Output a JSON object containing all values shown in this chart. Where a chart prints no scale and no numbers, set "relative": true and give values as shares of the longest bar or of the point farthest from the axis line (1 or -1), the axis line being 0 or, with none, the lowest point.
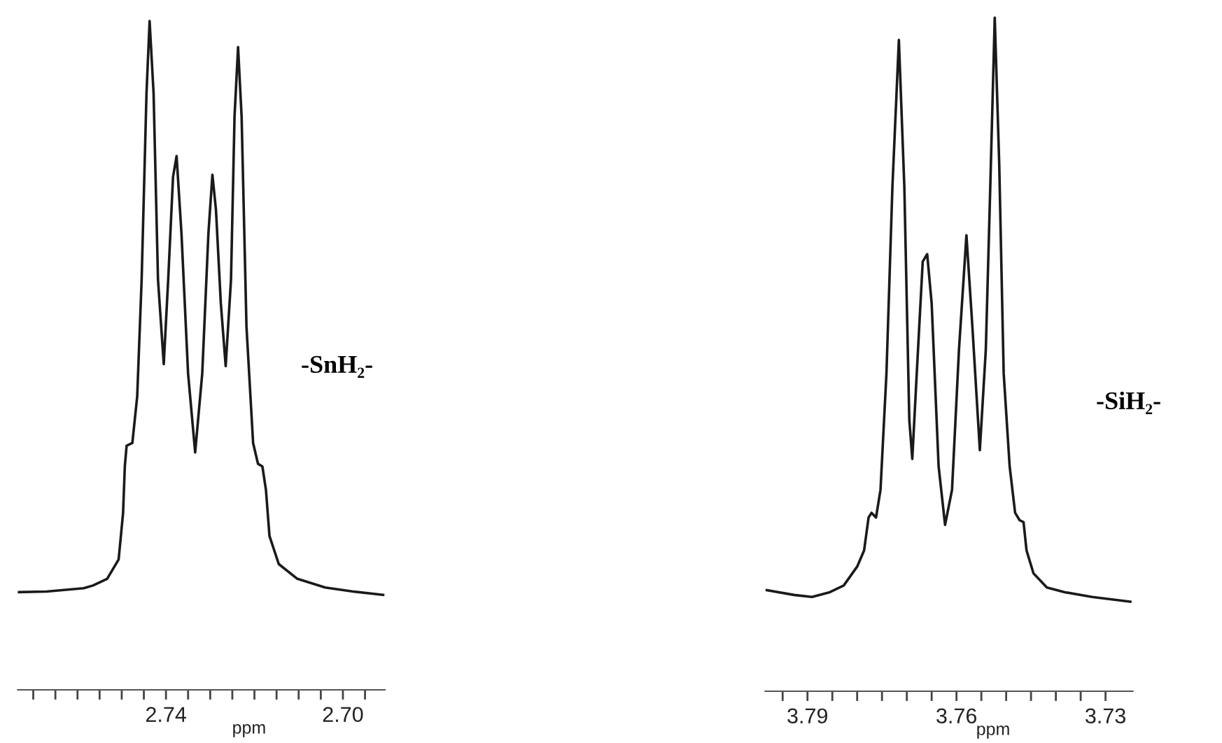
{
  "chart_data": [
    {
      "type": "line",
      "relative": true,
      "xlabel": "ppm",
      "annotations": [
        "-SnH₂-"
      ],
      "xlim": [
        2.7735,
        2.6905
      ],
      "xticks": [
        {
          "value": 2.77,
          "label": null
        },
        {
          "value": 2.765,
          "label": null
        },
        {
          "value": 2.76,
          "label": null
        },
        {
          "value": 2.755,
          "label": null
        },
        {
          "value": 2.75,
          "label": null
        },
        {
          "value": 2.745,
          "label": null
        },
        {
          "value": 2.74,
          "label": "2.74"
        },
        {
          "value": 2.735,
          "label": null
        },
        {
          "value": 2.73,
          "label": null
        },
        {
          "value": 2.725,
          "label": null
        },
        {
          "value": 2.72,
          "label": null
        },
        {
          "value": 2.715,
          "label": null
        },
        {
          "value": 2.71,
          "label": null
        },
        {
          "value": 2.705,
          "label": null
        },
        {
          "value": 2.7,
          "label": "2.70"
        },
        {
          "value": 2.695,
          "label": null
        }
      ],
      "tick_labels": "x",
      "marker": "none",
      "line_style": "solid",
      "series": [
        {
          "color": "#1a1a1a",
          "x": [
            2.7733,
            2.767,
            2.7586,
            2.7565,
            2.7533,
            2.7507,
            2.7497,
            2.7493,
            2.7489,
            2.7476,
            2.7465,
            2.7455,
            2.7444,
            2.7437,
            2.7428,
            2.7418,
            2.7405,
            2.7395,
            2.7384,
            2.7376,
            2.7365,
            2.735,
            2.7334,
            2.7318,
            2.7304,
            2.7295,
            2.7287,
            2.7276,
            2.7265,
            2.7253,
            2.7245,
            2.7237,
            2.7229,
            2.7218,
            2.7203,
            2.7192,
            2.7182,
            2.7174,
            2.7166,
            2.7145,
            2.7103,
            2.704,
            2.6977,
            2.6909
          ],
          "values": [
            0.146,
            0.147,
            0.152,
            0.156,
            0.166,
            0.195,
            0.264,
            0.334,
            0.365,
            0.369,
            0.439,
            0.613,
            0.892,
            1.0,
            0.892,
            0.613,
            0.487,
            0.613,
            0.767,
            0.798,
            0.683,
            0.473,
            0.355,
            0.473,
            0.683,
            0.77,
            0.718,
            0.578,
            0.484,
            0.613,
            0.857,
            0.961,
            0.857,
            0.543,
            0.369,
            0.338,
            0.334,
            0.299,
            0.23,
            0.188,
            0.166,
            0.153,
            0.147,
            0.142
          ]
        }
      ]
    },
    {
      "type": "line",
      "relative": true,
      "xlabel": "ppm",
      "annotations": [
        "-SiH₂-"
      ],
      "xlim": [
        3.7985,
        3.7245
      ],
      "xticks": [
        {
          "value": 3.795,
          "label": null
        },
        {
          "value": 3.79,
          "label": "3.79"
        },
        {
          "value": 3.785,
          "label": null
        },
        {
          "value": 3.78,
          "label": null
        },
        {
          "value": 3.775,
          "label": null
        },
        {
          "value": 3.77,
          "label": null
        },
        {
          "value": 3.765,
          "label": null
        },
        {
          "value": 3.76,
          "label": "3.76"
        },
        {
          "value": 3.755,
          "label": null
        },
        {
          "value": 3.75,
          "label": null
        },
        {
          "value": 3.745,
          "label": null
        },
        {
          "value": 3.74,
          "label": null
        },
        {
          "value": 3.735,
          "label": null
        },
        {
          "value": 3.73,
          "label": "3.73"
        }
      ],
      "tick_labels": "x",
      "marker": "none",
      "line_style": "solid",
      "series": [
        {
          "color": "#1a1a1a",
          "x": [
            3.7982,
            3.7927,
            3.7891,
            3.7855,
            3.7827,
            3.78,
            3.7786,
            3.7777,
            3.7771,
            3.7762,
            3.7753,
            3.7741,
            3.7729,
            3.7716,
            3.7705,
            3.7695,
            3.7689,
            3.768,
            3.7668,
            3.7659,
            3.765,
            3.7636,
            3.7623,
            3.7609,
            3.7595,
            3.758,
            3.7568,
            3.7553,
            3.7541,
            3.7532,
            3.7523,
            3.7514,
            3.7505,
            3.7493,
            3.7482,
            3.7473,
            3.7465,
            3.7459,
            3.7445,
            3.7418,
            3.7382,
            3.7327,
            3.725
          ],
          "values": [
            0.15,
            0.143,
            0.14,
            0.147,
            0.157,
            0.185,
            0.209,
            0.258,
            0.265,
            0.258,
            0.299,
            0.472,
            0.749,
            0.967,
            0.749,
            0.403,
            0.345,
            0.472,
            0.638,
            0.649,
            0.576,
            0.334,
            0.247,
            0.299,
            0.507,
            0.677,
            0.541,
            0.358,
            0.507,
            0.749,
            1.0,
            0.784,
            0.472,
            0.334,
            0.265,
            0.254,
            0.251,
            0.209,
            0.175,
            0.154,
            0.147,
            0.14,
            0.133
          ]
        }
      ]
    }
  ]
}
